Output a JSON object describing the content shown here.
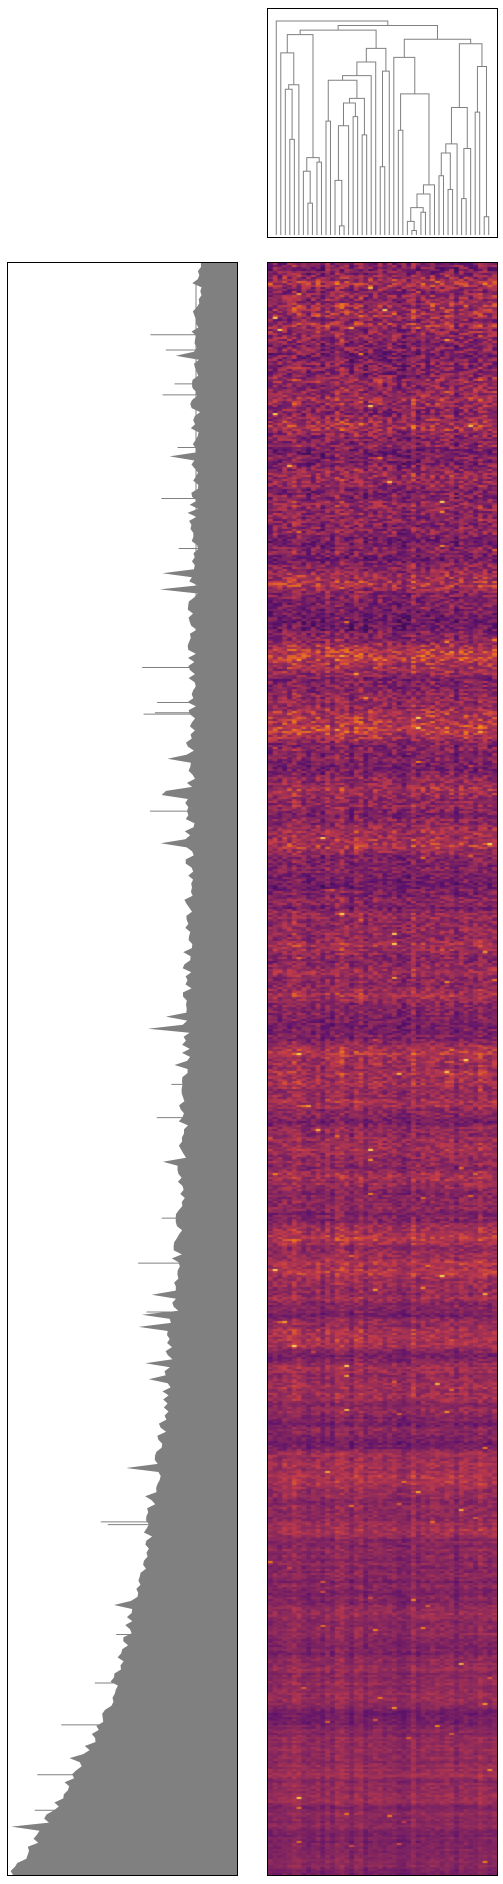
{
  "chart_data": [
    {
      "type": "dendrogram",
      "orientation": "top",
      "leaf_count": 48,
      "line_color": "#808080",
      "axes_visible": false
    },
    {
      "type": "dendrogram",
      "orientation": "left",
      "line_color": "#808080",
      "axes_visible": false
    },
    {
      "type": "heatmap",
      "colormap": "inferno",
      "columns": 48,
      "colors": {
        "low": "#3b0f70",
        "mid_low": "#6a1b6e",
        "mid": "#8c2a5c",
        "mid_high": "#c53c47",
        "high": "#f57d15",
        "peak": "#fcc545"
      },
      "axes_visible": false
    }
  ]
}
